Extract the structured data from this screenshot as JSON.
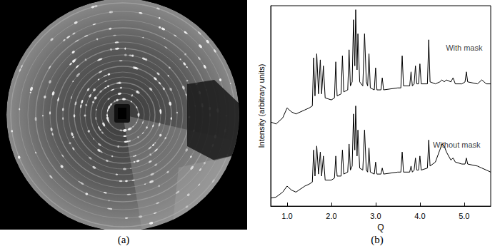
{
  "panel_labels": [
    "(a)",
    "(b)"
  ],
  "chart_data": {
    "type": "line",
    "x_label": "Q",
    "y_label": "Intensity (arbitrary units)",
    "xlim": [
      0.63,
      5.6
    ],
    "xticks": [
      {
        "value": 1,
        "label": "1.0"
      },
      {
        "value": 2,
        "label": "2.0"
      },
      {
        "value": 3,
        "label": "3.0"
      },
      {
        "value": 4,
        "label": "4.0"
      },
      {
        "value": 5,
        "label": "5.0"
      }
    ],
    "ylim": [
      0,
      100
    ],
    "tick_labels": "x",
    "grid": false,
    "x": [
      0.63,
      0.75,
      0.9,
      1.0,
      1.1,
      1.2,
      1.4,
      1.5,
      1.57,
      1.6,
      1.63,
      1.67,
      1.71,
      1.75,
      1.78,
      1.82,
      1.86,
      2.0,
      2.07,
      2.1,
      2.13,
      2.22,
      2.25,
      2.28,
      2.37,
      2.4,
      2.43,
      2.47,
      2.5,
      2.53,
      2.55,
      2.58,
      2.6,
      2.64,
      2.71,
      2.75,
      2.79,
      2.82,
      2.85,
      2.88,
      2.97,
      3.0,
      3.03,
      3.12,
      3.15,
      3.18,
      3.5,
      3.57,
      3.6,
      3.63,
      3.77,
      3.8,
      3.83,
      3.87,
      3.9,
      3.93,
      3.97,
      4.0,
      4.03,
      4.17,
      4.2,
      4.23,
      4.35,
      4.45,
      4.5,
      4.55,
      4.6,
      4.7,
      4.75,
      4.8,
      4.95,
      5.02,
      5.05,
      5.08,
      5.3,
      5.4,
      5.5,
      5.6
    ],
    "series": [
      {
        "name": "With mask",
        "color": "#000000",
        "values": [
          42,
          41,
          44,
          49,
          47,
          46,
          48,
          49,
          50,
          74,
          55,
          76,
          56,
          73,
          56,
          70,
          54,
          53,
          54,
          72,
          55,
          56,
          75,
          57,
          58,
          78,
          60,
          62,
          93,
          70,
          98,
          68,
          86,
          62,
          60,
          86,
          62,
          60,
          76,
          59,
          58,
          69,
          58,
          58,
          64,
          58,
          59,
          59,
          75,
          60,
          60,
          67,
          60,
          61,
          70,
          61,
          61,
          71,
          61,
          61,
          83,
          62,
          61,
          62,
          63,
          62,
          63,
          62,
          64,
          61,
          61,
          62,
          67,
          62,
          61,
          63,
          61,
          61
        ]
      },
      {
        "name": "Without mask",
        "color": "#000000",
        "values": [
          4,
          4.5,
          7,
          10,
          8,
          7,
          10,
          11,
          12,
          28,
          15,
          30,
          16,
          27,
          15,
          25,
          13,
          13,
          14,
          25,
          15,
          15,
          28,
          16,
          17,
          31,
          18,
          20,
          46,
          28,
          50,
          25,
          38,
          19,
          18,
          38,
          18,
          17,
          29,
          17,
          16,
          22,
          16,
          16,
          19,
          16,
          17,
          17,
          27,
          17,
          17,
          20,
          17,
          18,
          24,
          18,
          18,
          25,
          18,
          19,
          33,
          20,
          22,
          28,
          31,
          30,
          27,
          23,
          24,
          22,
          21,
          21,
          24,
          21,
          20,
          19,
          18,
          17
        ]
      }
    ],
    "annotations": [
      {
        "text": "With mask",
        "x": 5.0,
        "y": 79
      },
      {
        "text": "Without mask",
        "x": 4.83,
        "y": 30.5
      }
    ]
  }
}
